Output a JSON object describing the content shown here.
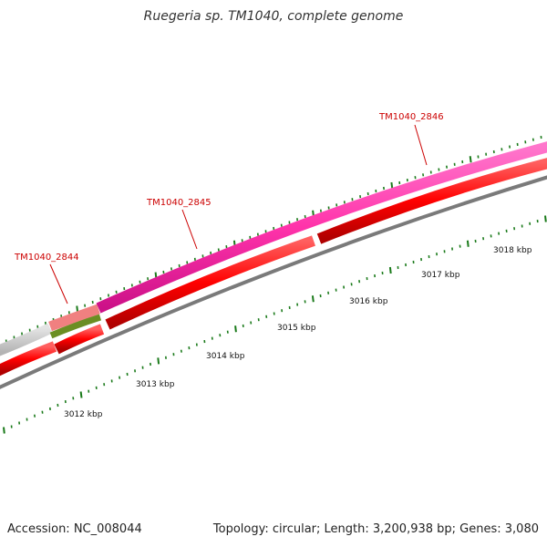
{
  "title": "Ruegeria sp. TM1040, complete genome",
  "footer": {
    "accession": "Accession: NC_008044",
    "summary": "Topology: circular; Length: 3,200,938 bp; Genes: 3,080"
  },
  "colors": {
    "cds": "#ff0000",
    "gene_magenta": "#ff33aa",
    "gene_salmon": "#f08080",
    "gene_olive": "#6b8e23",
    "gene_grey": "#c8c8c8",
    "label_red": "#cc0000",
    "tick_green": "#1a7a1a",
    "backbone": "#777777"
  },
  "genes": [
    {
      "name": "TM1040_2844"
    },
    {
      "name": "TM1040_2845"
    },
    {
      "name": "TM1040_2846"
    }
  ],
  "kbp_labels": [
    "3012 kbp",
    "3013 kbp",
    "3014 kbp",
    "3015 kbp",
    "3016 kbp",
    "3017 kbp",
    "3018 kbp"
  ]
}
